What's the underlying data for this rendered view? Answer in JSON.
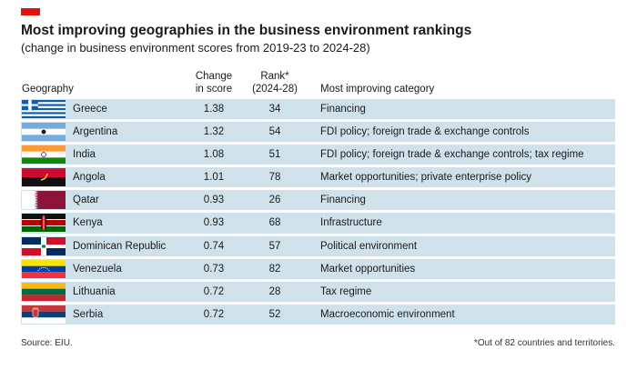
{
  "colors": {
    "accent": "#e3120b",
    "row_bg": "#cfe2ec"
  },
  "title": "Most improving geographies in the business environment rankings",
  "subtitle": "(change in business environment scores from 2019-23 to 2024-28)",
  "headers": {
    "geography": "Geography",
    "change_line1": "Change",
    "change_line2": "in score",
    "rank_line1": "Rank*",
    "rank_line2": "(2024-28)",
    "category": "Most improving category"
  },
  "chart_data": {
    "type": "table",
    "title": "Most improving geographies in the business environment rankings",
    "subtitle": "(change in business environment scores from 2019-23 to 2024-28)",
    "columns": [
      "Geography",
      "Change in score",
      "Rank* (2024-28)",
      "Most improving category"
    ],
    "rows": [
      {
        "flag": "greece-flag-icon",
        "geography": "Greece",
        "change": "1.38",
        "rank": "34",
        "category": "Financing"
      },
      {
        "flag": "argentina-flag-icon",
        "geography": "Argentina",
        "change": "1.32",
        "rank": "54",
        "category": "FDI policy; foreign trade & exchange controls"
      },
      {
        "flag": "india-flag-icon",
        "geography": "India",
        "change": "1.08",
        "rank": "51",
        "category": "FDI policy; foreign trade & exchange controls; tax regime"
      },
      {
        "flag": "angola-flag-icon",
        "geography": "Angola",
        "change": "1.01",
        "rank": "78",
        "category": "Market opportunities; private enterprise policy"
      },
      {
        "flag": "qatar-flag-icon",
        "geography": "Qatar",
        "change": "0.93",
        "rank": "26",
        "category": "Financing"
      },
      {
        "flag": "kenya-flag-icon",
        "geography": "Kenya",
        "change": "0.93",
        "rank": "68",
        "category": "Infrastructure"
      },
      {
        "flag": "dominican-republic-flag-icon",
        "geography": "Dominican Republic",
        "change": "0.74",
        "rank": "57",
        "category": "Political environment"
      },
      {
        "flag": "venezuela-flag-icon",
        "geography": "Venezuela",
        "change": "0.73",
        "rank": "82",
        "category": "Market opportunities"
      },
      {
        "flag": "lithuania-flag-icon",
        "geography": "Lithuania",
        "change": "0.72",
        "rank": "28",
        "category": "Tax regime"
      },
      {
        "flag": "serbia-flag-icon",
        "geography": "Serbia",
        "change": "0.72",
        "rank": "52",
        "category": "Macroeconomic environment"
      }
    ]
  },
  "footer": {
    "source": "Source: EIU.",
    "note": "*Out of 82 countries and territories."
  }
}
